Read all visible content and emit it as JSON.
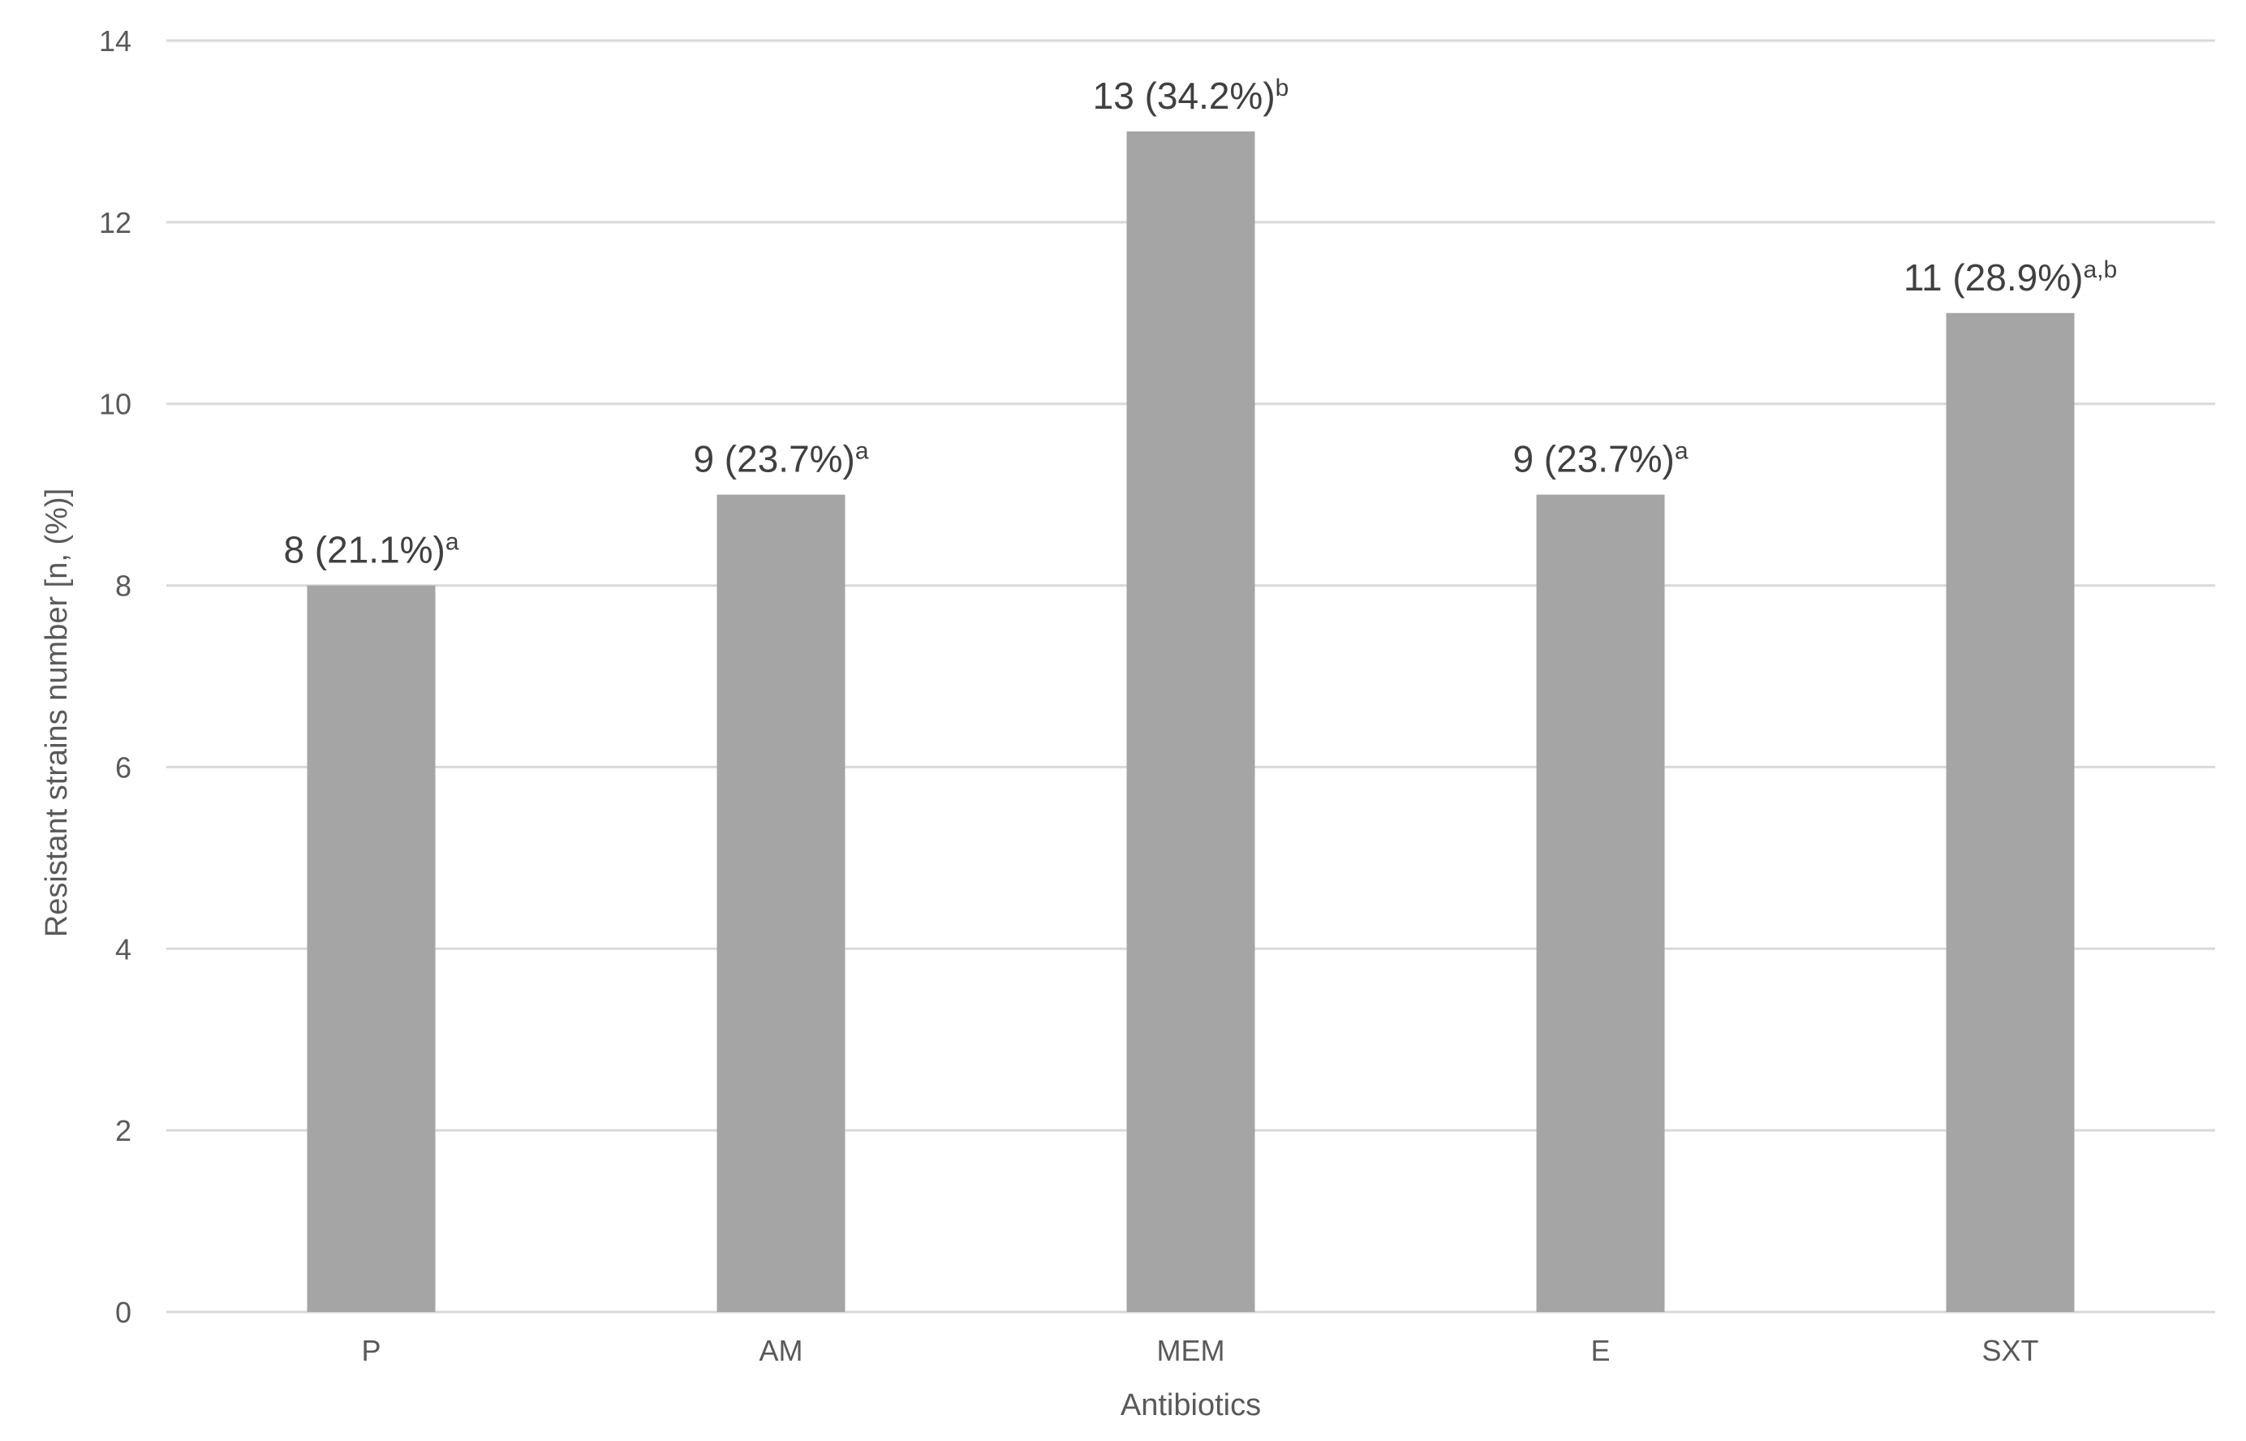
{
  "chart_data": {
    "type": "bar",
    "title": "",
    "xlabel": "Antibiotics",
    "ylabel": "Resistant strains number  [n, (%)]",
    "categories": [
      "P",
      "AM",
      "MEM",
      "E",
      "SXT"
    ],
    "values": [
      8,
      9,
      13,
      9,
      11
    ],
    "data_labels": [
      {
        "text": "8 (21.1%)",
        "superscript": "a"
      },
      {
        "text": "9 (23.7%)",
        "superscript": "a"
      },
      {
        "text": "13 (34.2%)",
        "superscript": "b"
      },
      {
        "text": "9 (23.7%)",
        "superscript": "a"
      },
      {
        "text": "11 (28.9%)",
        "superscript": "a,b"
      }
    ],
    "ylim": [
      0,
      14
    ],
    "yticks": [
      "0",
      "2",
      "4",
      "6",
      "8",
      "10",
      "12",
      "14"
    ],
    "grid": true,
    "legend": "none",
    "colors": {
      "bar": "#a5a5a5",
      "grid": "#d9d9d9",
      "axis_text": "#595959",
      "label_text": "#404040"
    }
  }
}
